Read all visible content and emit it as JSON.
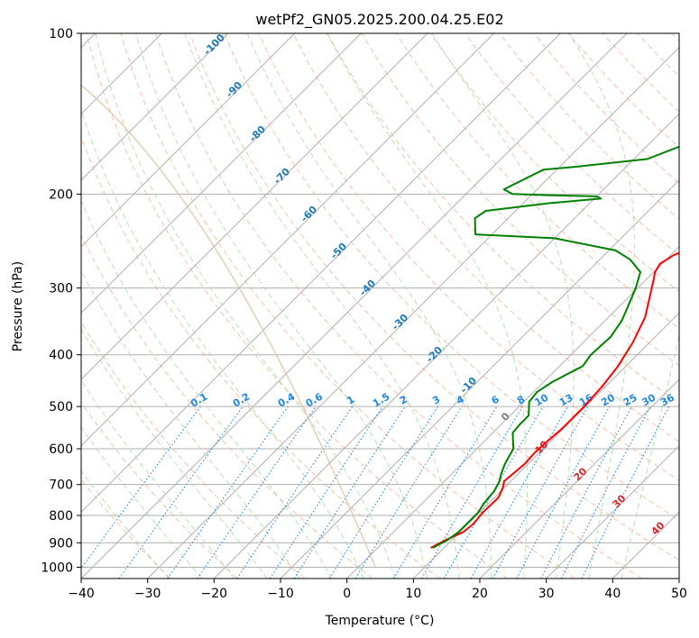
{
  "chart_data": {
    "type": "line",
    "title": "wetPf2_GN05.2025.200.04.25.E02",
    "xlabel": "Temperature (°C)",
    "ylabel": "Pressure (hPa)",
    "xlim": [
      -40,
      50
    ],
    "ylim": [
      1050,
      100
    ],
    "y_scale": "log",
    "x_ticks": [
      -40,
      -30,
      -20,
      -10,
      0,
      10,
      20,
      30,
      40,
      50
    ],
    "y_ticks": [
      100,
      200,
      300,
      400,
      500,
      600,
      700,
      800,
      900,
      1000
    ],
    "grid": true,
    "colors": {
      "temperature": "#ff0000",
      "dewpoint": "#008000",
      "isotherm": "#b0b0b0",
      "dry_adiabat": "#f4a582",
      "moist_adiabat": "#a6d9a0",
      "mixing_ratio": "#1e88e5",
      "label_blue": "#1f77b4",
      "label_red": "#d62728",
      "freezing_label": "#7f7f7f",
      "arc": "#ddc4a0"
    },
    "series": [
      {
        "key": "temperature",
        "x": [
          8.0,
          9.0,
          10.5,
          10.8,
          10.5,
          10.6,
          9.8,
          9.0,
          9.2,
          9.5,
          9.3,
          9.5,
          9.8,
          9.8,
          9.5,
          8.8,
          7.5,
          5.5,
          3.0,
          1.2,
          0.2,
          -0.3,
          0.5,
          4.5,
          10.0,
          16.0,
          18.0,
          18.7,
          20.0,
          23.0,
          24.0,
          26.0,
          28.0,
          29.5,
          31.0,
          32.3
        ],
        "y": [
          920,
          890,
          860,
          830,
          790,
          740,
          710,
          690,
          670,
          640,
          610,
          580,
          550,
          500,
          460,
          420,
          380,
          340,
          310,
          290,
          280,
          270,
          260,
          245,
          225,
          200,
          190,
          180,
          165,
          145,
          140,
          130,
          120,
          112,
          106,
          100
        ]
      },
      {
        "key": "dewpoint",
        "x": [
          8.3,
          9.3,
          9.8,
          9.8,
          9.8,
          9.3,
          9.0,
          8.3,
          7.5,
          6.5,
          5.5,
          3.0,
          2.8,
          2.8,
          0.8,
          0.5,
          1.3,
          3.5,
          3.0,
          3.3,
          2.5,
          1.0,
          -0.3,
          -2.0,
          -5.5,
          -9.0,
          -20.0,
          -32.5,
          -35.0,
          -34.5,
          -26.0,
          -19.0,
          -20.0,
          -27.5,
          -33.0,
          -35.0,
          -32.0,
          -28.0,
          -18.0,
          -14.0,
          -11.0,
          -9.0,
          -7.0,
          -4.0,
          -2.0
        ],
        "y": [
          920,
          890,
          860,
          830,
          790,
          760,
          720,
          690,
          670,
          640,
          600,
          560,
          540,
          520,
          490,
          470,
          450,
          420,
          400,
          370,
          345,
          320,
          300,
          280,
          265,
          255,
          242,
          238,
          222,
          215,
          208,
          204,
          202,
          201,
          200,
          196,
          180,
          178,
          172,
          160,
          150,
          142,
          133,
          120,
          113
        ]
      }
    ],
    "dry_adiabat_labels": [
      "-100",
      "-90",
      "-80",
      "-70",
      "-60",
      "-50",
      "-40",
      "-30",
      "-20",
      "-10",
      "0",
      "10",
      "20",
      "30",
      "40"
    ],
    "mixing_ratio_labels": [
      "0.1",
      "0.2",
      "0.4",
      "0.6",
      "1",
      "1.5",
      "2",
      "3",
      "4",
      "6",
      "8",
      "10",
      "13",
      "16",
      "20",
      "25",
      "30",
      "36"
    ]
  }
}
